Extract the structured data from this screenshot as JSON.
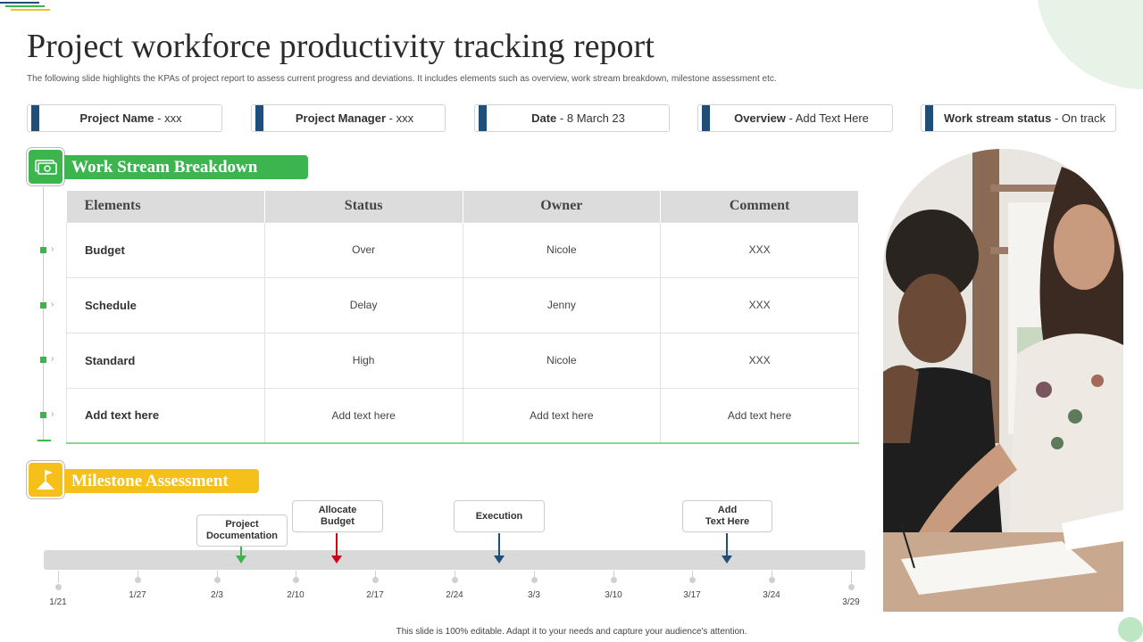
{
  "title": "Project workforce productivity tracking report",
  "subtitle": "The following slide highlights the KPAs of project report to assess current progress and deviations. It includes elements  such as overview, work stream breakdown, milestone assessment etc.",
  "info": [
    {
      "label": "Project Name",
      "value": " - xxx"
    },
    {
      "label": "Project Manager",
      "value": " - xxx"
    },
    {
      "label": "Date",
      "value": " - 8 March 23"
    },
    {
      "label": "Overview",
      "value": " - Add Text Here"
    },
    {
      "label": "Work stream status",
      "value": "  - On track"
    }
  ],
  "work_stream": {
    "heading": "Work Stream Breakdown",
    "columns": [
      "Elements",
      "Status",
      "Owner",
      "Comment"
    ],
    "rows": [
      [
        "Budget",
        "Over",
        "Nicole",
        "XXX"
      ],
      [
        "Schedule",
        "Delay",
        "Jenny",
        "XXX"
      ],
      [
        "Standard",
        "High",
        "Nicole",
        "XXX"
      ],
      [
        "Add text here",
        "Add text here",
        "Add text here",
        "Add text here"
      ]
    ]
  },
  "milestone": {
    "heading": "Milestone Assessment",
    "ticks": [
      "1/21",
      "1/27",
      "2/3",
      "2/10",
      "2/17",
      "2/24",
      "3/3",
      "3/10",
      "3/17",
      "3/24",
      "3/29"
    ],
    "items": [
      {
        "label": "Project\nDocumentation",
        "color": "#3cb54e"
      },
      {
        "label": "Allocate\nBudget",
        "color": "#d0021b"
      },
      {
        "label": "Execution",
        "color": "#1f4e79"
      },
      {
        "label": "Add\nText Here",
        "color": "#1f4e79"
      }
    ]
  },
  "colors": {
    "accent_green": "#3cb54e",
    "accent_yellow": "#f5c01a",
    "navy": "#1f4e79"
  },
  "icons": {
    "work_stream": "money-icon",
    "milestone": "flag-icon"
  },
  "footer": "This slide is 100% editable.  Adapt it to your needs and capture your audience's attention."
}
